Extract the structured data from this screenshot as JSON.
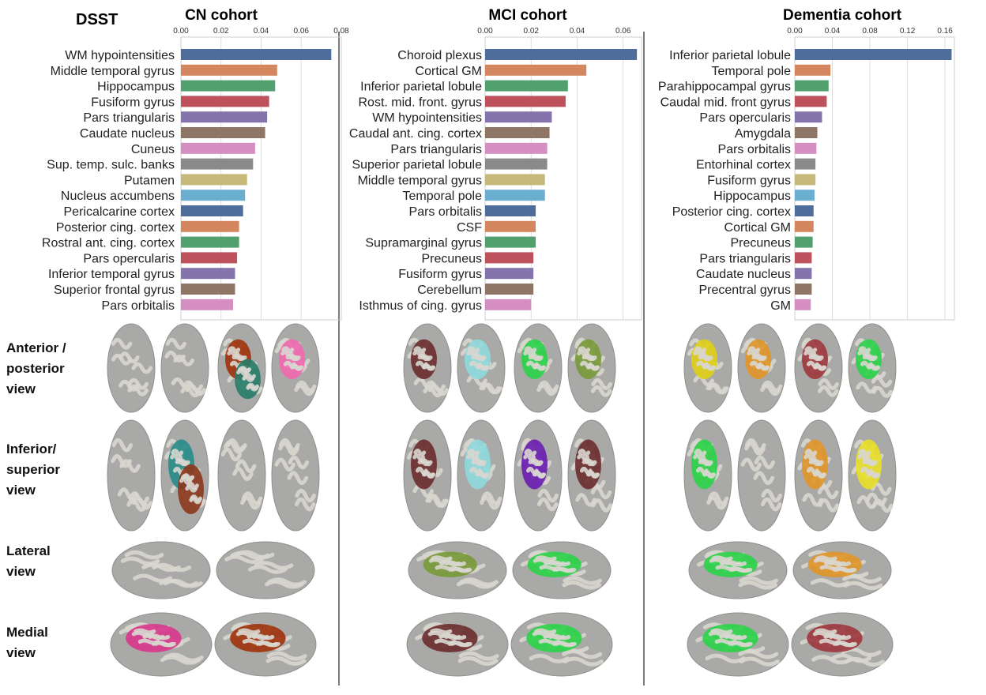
{
  "figure": {
    "metric_label": "DSST",
    "view_labels": [
      [
        "Anterior /",
        "posterior",
        "view"
      ],
      [
        "Inferior/",
        "superior",
        "view"
      ],
      [
        "Lateral",
        "view"
      ],
      [
        "Medial",
        "view"
      ]
    ]
  },
  "colors": {
    "palette": [
      "#4f6d9b",
      "#d4875e",
      "#52a06e",
      "#bd525d",
      "#8574ac",
      "#8f7565",
      "#d48ec2",
      "#8a8a8a",
      "#c6b879",
      "#6aaed0"
    ],
    "brain_base": "#a9a9a7",
    "brain_gyri": "#d8d6cf",
    "grid": "#dddddd",
    "divider": "#7a7a7a"
  },
  "chart_data": [
    {
      "type": "bar",
      "orientation": "horizontal",
      "title": "CN cohort",
      "xlim": [
        0,
        0.08
      ],
      "xticks": [
        0.0,
        0.02,
        0.04,
        0.06,
        0.08
      ],
      "xtick_labels": [
        "0.00",
        "0.02",
        "0.04",
        "0.06",
        "0.08"
      ],
      "categories": [
        "WM hypointensities",
        "Middle temporal gyrus",
        "Hippocampus",
        "Fusiform gyrus",
        "Pars triangularis",
        "Caudate nucleus",
        "Cuneus",
        "Sup. temp. sulc. banks",
        "Putamen",
        "Nucleus accumbens",
        "Pericalcarine cortex",
        "Posterior cing. cortex",
        "Rostral ant. cing. cortex",
        "Pars opercularis",
        "Inferior temporal gyrus",
        "Superior frontal gyrus",
        "Pars orbitalis"
      ],
      "values": [
        0.075,
        0.048,
        0.047,
        0.044,
        0.043,
        0.042,
        0.037,
        0.036,
        0.033,
        0.032,
        0.031,
        0.029,
        0.029,
        0.028,
        0.027,
        0.027,
        0.026
      ]
    },
    {
      "type": "bar",
      "orientation": "horizontal",
      "title": "MCI cohort",
      "xlim": [
        0,
        0.068
      ],
      "xticks": [
        0.0,
        0.02,
        0.04,
        0.06
      ],
      "xtick_labels": [
        "0.00",
        "0.02",
        "0.04",
        "0.06"
      ],
      "categories": [
        "Choroid plexus",
        "Cortical GM",
        "Inferior parietal lobule",
        "Rost. mid. front. gyrus",
        "WM hypointensities",
        "Caudal ant. cing. cortex",
        "Pars triangularis",
        "Superior parietal lobule",
        "Middle temporal gyrus",
        "Temporal pole",
        "Pars orbitalis",
        "CSF",
        "Supramarginal gyrus",
        "Precuneus",
        "Fusiform gyrus",
        "Cerebellum",
        "Isthmus of cing. gyrus"
      ],
      "values": [
        0.066,
        0.044,
        0.036,
        0.035,
        0.029,
        0.028,
        0.027,
        0.027,
        0.026,
        0.026,
        0.022,
        0.022,
        0.022,
        0.021,
        0.021,
        0.021,
        0.02
      ]
    },
    {
      "type": "bar",
      "orientation": "horizontal",
      "title": "Dementia cohort",
      "xlim": [
        0,
        0.17
      ],
      "xticks": [
        0.0,
        0.04,
        0.08,
        0.12,
        0.16
      ],
      "xtick_labels": [
        "0.00",
        "0.04",
        "0.08",
        "0.12",
        "0.16"
      ],
      "categories": [
        "Inferior parietal lobule",
        "Temporal pole",
        "Parahippocampal gyrus",
        "Caudal mid. front gyrus",
        "Pars opercularis",
        "Amygdala",
        "Pars orbitalis",
        "Entorhinal cortex",
        "Fusiform gyrus",
        "Hippocampus",
        "Posterior cing. cortex",
        "Cortical GM",
        "Precuneus",
        "Pars triangularis",
        "Caudate nucleus",
        "Precentral gyrus",
        "GM"
      ],
      "values": [
        0.167,
        0.038,
        0.036,
        0.034,
        0.029,
        0.024,
        0.023,
        0.022,
        0.022,
        0.021,
        0.02,
        0.02,
        0.019,
        0.018,
        0.018,
        0.018,
        0.017
      ]
    }
  ],
  "brain_panels": [
    {
      "cohort": "CN cohort",
      "highlights": [
        {
          "view": 0,
          "brain": 2,
          "color": "#a0340e"
        },
        {
          "view": 0,
          "brain": 3,
          "color": "#f06ab0"
        },
        {
          "view": 0,
          "brain": 2,
          "color": "#2a7d6a"
        },
        {
          "view": 1,
          "brain": 1,
          "color": "#2a8d8a"
        },
        {
          "view": 1,
          "brain": 1,
          "color": "#8b3a1e"
        },
        {
          "view": 3,
          "brain": 0,
          "color": "#d8388c"
        },
        {
          "view": 3,
          "brain": 1,
          "color": "#a0340e"
        }
      ]
    },
    {
      "cohort": "MCI cohort",
      "highlights": [
        {
          "view": 0,
          "brain": 0,
          "color": "#6b2f2f"
        },
        {
          "view": 0,
          "brain": 1,
          "color": "#8fd9dc"
        },
        {
          "view": 0,
          "brain": 2,
          "color": "#2ed24a"
        },
        {
          "view": 0,
          "brain": 3,
          "color": "#7a9a3a"
        },
        {
          "view": 1,
          "brain": 0,
          "color": "#6b2f2f"
        },
        {
          "view": 1,
          "brain": 1,
          "color": "#8fd9dc"
        },
        {
          "view": 1,
          "brain": 2,
          "color": "#6a1fb0"
        },
        {
          "view": 1,
          "brain": 3,
          "color": "#6b2f2f"
        },
        {
          "view": 2,
          "brain": 0,
          "color": "#7a9a3a"
        },
        {
          "view": 2,
          "brain": 1,
          "color": "#2ed24a"
        },
        {
          "view": 3,
          "brain": 0,
          "color": "#6b2f2f"
        },
        {
          "view": 3,
          "brain": 1,
          "color": "#2ed24a"
        }
      ]
    },
    {
      "cohort": "Dementia cohort",
      "highlights": [
        {
          "view": 0,
          "brain": 0,
          "color": "#e0cf1a"
        },
        {
          "view": 0,
          "brain": 1,
          "color": "#e0962a"
        },
        {
          "view": 0,
          "brain": 2,
          "color": "#9e3a40"
        },
        {
          "view": 0,
          "brain": 3,
          "color": "#2ed24a"
        },
        {
          "view": 1,
          "brain": 0,
          "color": "#2ed24a"
        },
        {
          "view": 1,
          "brain": 2,
          "color": "#e0962a"
        },
        {
          "view": 1,
          "brain": 3,
          "color": "#e8e02a"
        },
        {
          "view": 2,
          "brain": 0,
          "color": "#2ed24a"
        },
        {
          "view": 2,
          "brain": 1,
          "color": "#e0962a"
        },
        {
          "view": 3,
          "brain": 0,
          "color": "#2ed24a"
        },
        {
          "view": 3,
          "brain": 1,
          "color": "#9e3a40"
        }
      ]
    }
  ]
}
